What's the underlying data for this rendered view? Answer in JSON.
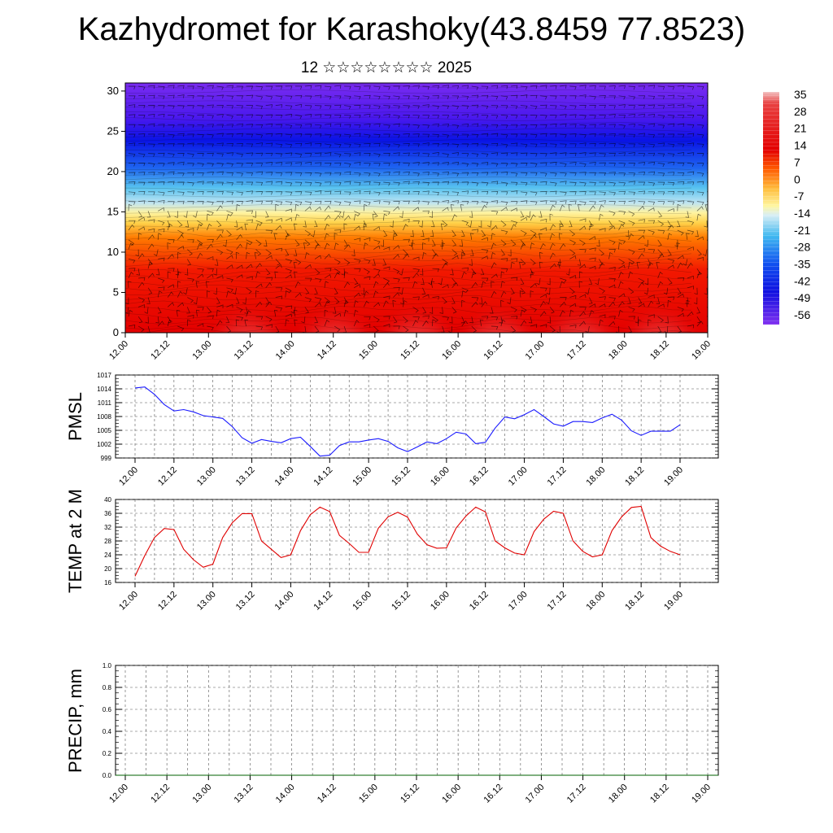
{
  "title": "Kazhydromet for Karashoky(43.8459 77.8523)",
  "subtitle": "12 ☆☆☆☆☆☆☆☆ 2025",
  "colors": {
    "pmsl_line": "#1a1aff",
    "temp_line": "#e00000",
    "precip_line": "#006000"
  },
  "chart_data": [
    {
      "type": "heatmap",
      "id": "cross_section",
      "x_ticks": [
        "12.00",
        "12.12",
        "13.00",
        "13.12",
        "14.00",
        "14.12",
        "15.00",
        "15.12",
        "16.00",
        "16.12",
        "17.00",
        "17.12",
        "18.00",
        "18.12",
        "19.00"
      ],
      "y_ticks": [
        "0",
        "5",
        "10",
        "15",
        "20",
        "25",
        "30"
      ],
      "ylim": [
        0,
        31
      ],
      "colorbar_labels": [
        "35",
        "28",
        "21",
        "14",
        "7",
        "0",
        "-7",
        "-14",
        "-21",
        "-28",
        "-35",
        "-42",
        "-49",
        "-56"
      ],
      "colorbar_range": [
        -60,
        38
      ]
    },
    {
      "type": "line",
      "id": "pmsl",
      "ylabel": "PMSL",
      "ylim": [
        999,
        1017
      ],
      "y_ticks": [
        "1017",
        "1014",
        "1011",
        "1008",
        "1005",
        "1002",
        "999"
      ],
      "x_ticks": [
        "12.00",
        "12.12",
        "13.00",
        "13.12",
        "14.00",
        "14.12",
        "15.00",
        "15.12",
        "16.00",
        "16.12",
        "17.00",
        "17.12",
        "18.00",
        "18.12",
        "19.00"
      ],
      "values": [
        1014.2,
        1014.4,
        1012.8,
        1010.6,
        1009.2,
        1009.5,
        1009.0,
        1008.2,
        1007.9,
        1007.6,
        1005.8,
        1003.4,
        1002.2,
        1003.0,
        1002.6,
        1002.3,
        1003.2,
        1003.5,
        1001.5,
        999.4,
        999.6,
        1001.7,
        1002.5,
        1002.5,
        1002.9,
        1003.2,
        1002.6,
        1001.2,
        1000.4,
        1001.4,
        1002.5,
        1002.1,
        1003.2,
        1004.6,
        1004.2,
        1002.1,
        1002.4,
        1005.5,
        1007.9,
        1007.5,
        1008.4,
        1009.5,
        1008.0,
        1006.4,
        1005.9,
        1006.9,
        1006.9,
        1006.7,
        1007.7,
        1008.5,
        1007.2,
        1004.9,
        1003.9,
        1004.8,
        1004.8,
        1004.8,
        1006.2
      ]
    },
    {
      "type": "line",
      "id": "temp2m",
      "ylabel": "TEMP at 2 M",
      "ylim": [
        16,
        40
      ],
      "y_ticks": [
        "40",
        "36",
        "32",
        "28",
        "24",
        "20",
        "16"
      ],
      "x_ticks": [
        "12.00",
        "12.12",
        "13.00",
        "13.12",
        "14.00",
        "14.12",
        "15.00",
        "15.12",
        "16.00",
        "16.12",
        "17.00",
        "17.12",
        "18.00",
        "18.12",
        "19.00"
      ],
      "values": [
        17.8,
        23.8,
        29.0,
        31.6,
        31.3,
        25.6,
        22.6,
        20.4,
        21.3,
        29.0,
        33.3,
        35.9,
        35.9,
        28.0,
        25.6,
        23.2,
        24.0,
        31.0,
        35.6,
        37.8,
        36.5,
        29.6,
        27.3,
        24.7,
        24.7,
        31.7,
        35.0,
        36.3,
        34.9,
        30.0,
        26.9,
        25.9,
        26.0,
        31.8,
        35.2,
        37.8,
        36.4,
        28.0,
        26.0,
        24.5,
        24.0,
        30.7,
        34.3,
        36.6,
        36.0,
        28.0,
        25.0,
        23.4,
        24.0,
        31.0,
        35.0,
        37.7,
        38.0,
        29.0,
        26.5,
        25.0,
        24.0
      ]
    },
    {
      "type": "line",
      "id": "precip",
      "ylabel": "PRECIP, mm",
      "ylim": [
        0,
        1
      ],
      "y_ticks": [
        "1.0",
        "0.8",
        "0.6",
        "0.4",
        "0.2",
        "0.0"
      ],
      "x_ticks": [
        "12.00",
        "12.12",
        "13.00",
        "13.12",
        "14.00",
        "14.12",
        "15.00",
        "15.12",
        "16.00",
        "16.12",
        "17.00",
        "17.12",
        "18.00",
        "18.12",
        "19.00"
      ],
      "values": [
        0,
        0,
        0,
        0,
        0,
        0,
        0,
        0,
        0,
        0,
        0,
        0,
        0,
        0,
        0,
        0,
        0,
        0,
        0,
        0,
        0,
        0,
        0,
        0,
        0,
        0,
        0,
        0,
        0,
        0,
        0,
        0,
        0,
        0,
        0,
        0,
        0,
        0,
        0,
        0,
        0,
        0,
        0,
        0,
        0,
        0,
        0,
        0,
        0,
        0,
        0,
        0,
        0,
        0,
        0,
        0,
        0
      ]
    }
  ]
}
